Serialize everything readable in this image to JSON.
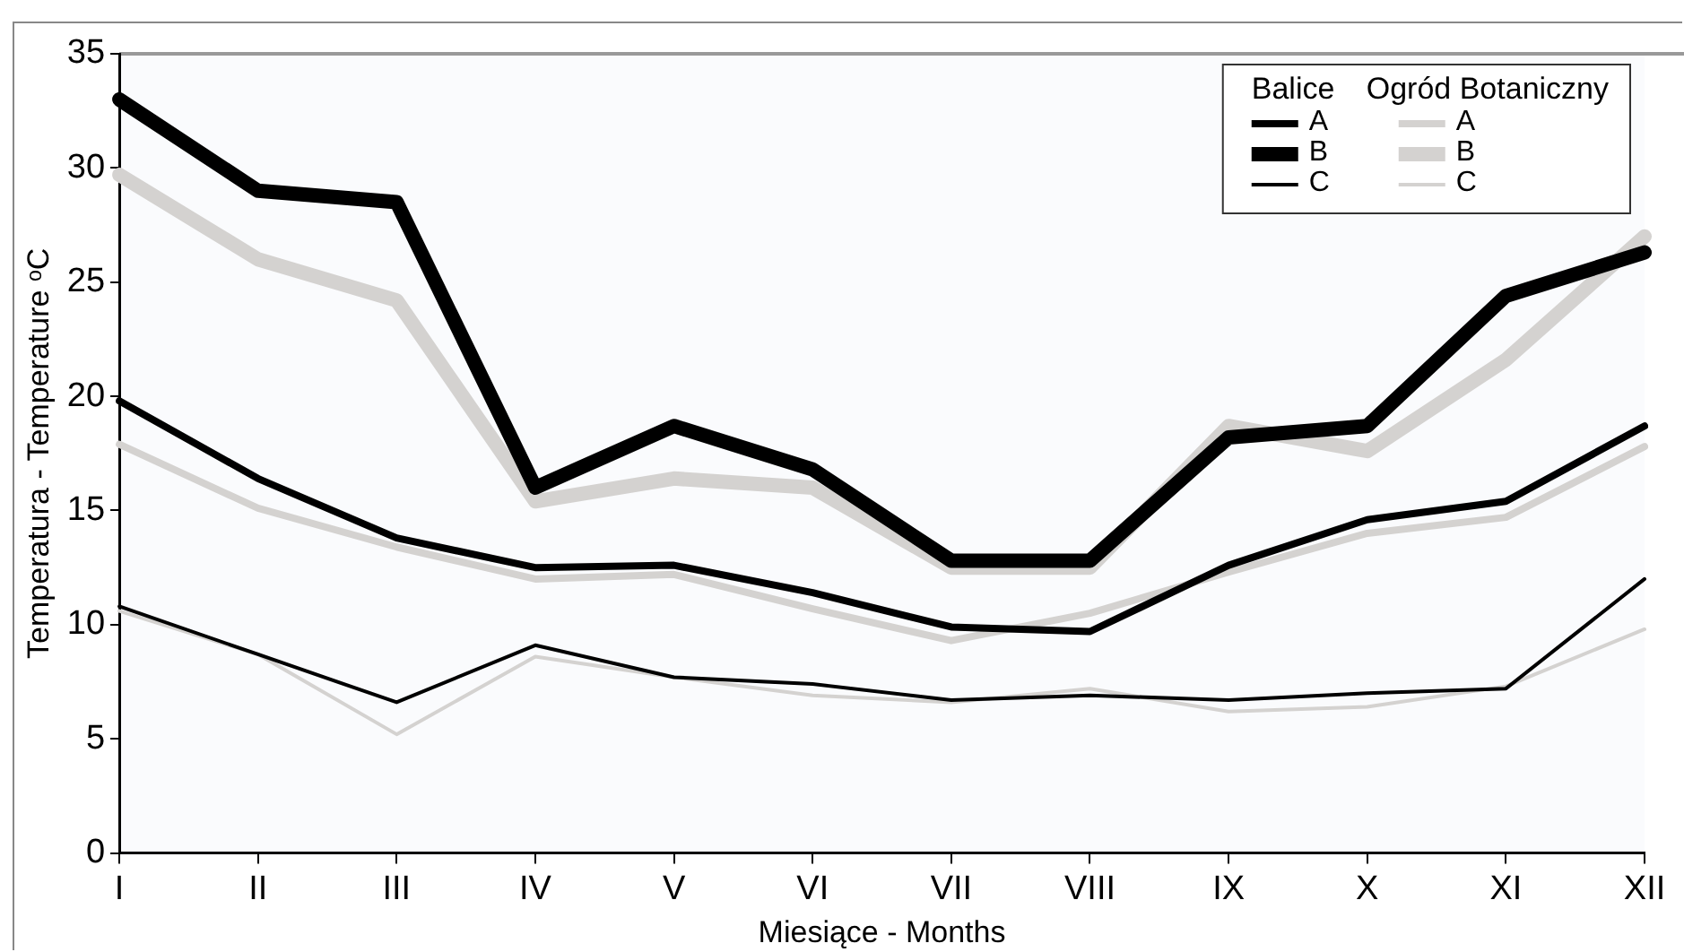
{
  "chart_data": {
    "type": "line",
    "xlabel": "Miesiące - Months",
    "ylabel": "Temperatura - Temperature ᵒC",
    "categories": [
      "I",
      "II",
      "III",
      "IV",
      "V",
      "VI",
      "VII",
      "VIII",
      "IX",
      "X",
      "XI",
      "XII"
    ],
    "ylim": [
      0,
      35
    ],
    "yticks": [
      0,
      5,
      10,
      15,
      20,
      25,
      30,
      35
    ],
    "grid": false,
    "legend": "top right",
    "marker": "none",
    "line_style": "solid",
    "annotations": [
      "Balice",
      "Ogród Botaniczny"
    ],
    "series": [
      {
        "name": "A",
        "color": "#000000",
        "values": [
          19.8,
          16.4,
          13.8,
          12.5,
          12.6,
          11.4,
          9.9,
          9.7,
          12.6,
          14.6,
          15.4,
          18.7
        ]
      },
      {
        "name": "B",
        "color": "#000000",
        "values": [
          33,
          29,
          28.5,
          16,
          18.7,
          16.8,
          12.8,
          12.8,
          18.2,
          18.7,
          24.4,
          26.3
        ]
      },
      {
        "name": "C",
        "color": "#000000",
        "values": [
          10.8,
          8.7,
          6.6,
          9.1,
          7.7,
          7.4,
          6.7,
          6.9,
          6.7,
          7.0,
          7.2,
          12
        ]
      },
      {
        "name": "A",
        "color": "#d4d2d0",
        "values": [
          17.9,
          15.1,
          13.4,
          12.0,
          12.2,
          10.7,
          9.3,
          10.5,
          12.3,
          14.0,
          14.7,
          17.8
        ]
      },
      {
        "name": "B",
        "color": "#d4d2d0",
        "values": [
          29.7,
          26,
          24.2,
          15.4,
          16.4,
          16,
          12.5,
          12.5,
          18.7,
          17.6,
          21.6,
          27
        ]
      },
      {
        "name": "C",
        "color": "#d4d2d0",
        "values": [
          10.6,
          8.7,
          5.2,
          8.6,
          7.7,
          6.9,
          6.6,
          7.2,
          6.2,
          6.4,
          7.3,
          9.8
        ]
      }
    ]
  }
}
